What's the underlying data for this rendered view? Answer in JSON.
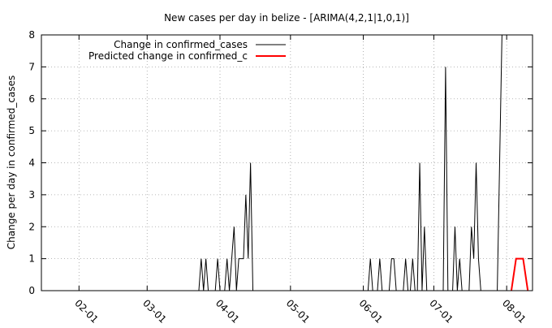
{
  "chart_data": {
    "type": "line",
    "title": "New cases per day in belize -  [ARIMA(4,2,1|1,0,1)]",
    "xlabel": "",
    "ylabel": "Change per day in confirmed_cases",
    "xlim": [
      "2020-01-16",
      "2020-08-12"
    ],
    "ylim": [
      0,
      8
    ],
    "yticks": [
      0,
      1,
      2,
      3,
      4,
      5,
      6,
      7,
      8
    ],
    "xticks": [
      {
        "date": "2020-02-01",
        "label": "02-01"
      },
      {
        "date": "2020-03-01",
        "label": "03-01"
      },
      {
        "date": "2020-04-01",
        "label": "04-01"
      },
      {
        "date": "2020-05-01",
        "label": "05-01"
      },
      {
        "date": "2020-06-01",
        "label": "06-01"
      },
      {
        "date": "2020-07-01",
        "label": "07-01"
      },
      {
        "date": "2020-08-01",
        "label": "08-01"
      }
    ],
    "grid": true,
    "legend_position": "top-left",
    "series": [
      {
        "name": "Change in confirmed_cases",
        "color": "#000000",
        "points": [
          [
            "2020-03-23",
            0
          ],
          [
            "2020-03-24",
            1
          ],
          [
            "2020-03-25",
            0
          ],
          [
            "2020-03-26",
            1
          ],
          [
            "2020-03-27",
            0
          ],
          [
            "2020-03-30",
            0
          ],
          [
            "2020-03-31",
            1
          ],
          [
            "2020-04-01",
            0
          ],
          [
            "2020-04-03",
            0
          ],
          [
            "2020-04-04",
            1
          ],
          [
            "2020-04-05",
            0
          ],
          [
            "2020-04-06",
            1
          ],
          [
            "2020-04-07",
            2
          ],
          [
            "2020-04-08",
            0
          ],
          [
            "2020-04-09",
            1
          ],
          [
            "2020-04-10",
            1
          ],
          [
            "2020-04-11",
            1
          ],
          [
            "2020-04-12",
            3
          ],
          [
            "2020-04-13",
            1
          ],
          [
            "2020-04-14",
            4
          ],
          [
            "2020-04-15",
            0
          ],
          [
            "2020-06-01",
            0
          ],
          [
            "2020-06-03",
            0
          ],
          [
            "2020-06-04",
            1
          ],
          [
            "2020-06-05",
            0
          ],
          [
            "2020-06-07",
            0
          ],
          [
            "2020-06-08",
            1
          ],
          [
            "2020-06-09",
            0
          ],
          [
            "2020-06-12",
            0
          ],
          [
            "2020-06-13",
            1
          ],
          [
            "2020-06-14",
            1
          ],
          [
            "2020-06-15",
            0
          ],
          [
            "2020-06-18",
            0
          ],
          [
            "2020-06-19",
            1
          ],
          [
            "2020-06-20",
            0
          ],
          [
            "2020-06-21",
            0
          ],
          [
            "2020-06-22",
            1
          ],
          [
            "2020-06-23",
            0
          ],
          [
            "2020-06-24",
            0
          ],
          [
            "2020-06-25",
            4
          ],
          [
            "2020-06-26",
            0
          ],
          [
            "2020-06-27",
            2
          ],
          [
            "2020-06-28",
            0
          ],
          [
            "2020-07-01",
            0
          ],
          [
            "2020-07-05",
            0
          ],
          [
            "2020-07-06",
            7
          ],
          [
            "2020-07-07",
            0
          ],
          [
            "2020-07-09",
            0
          ],
          [
            "2020-07-10",
            2
          ],
          [
            "2020-07-11",
            0
          ],
          [
            "2020-07-12",
            1
          ],
          [
            "2020-07-13",
            0
          ],
          [
            "2020-07-16",
            0
          ],
          [
            "2020-07-17",
            2
          ],
          [
            "2020-07-18",
            1
          ],
          [
            "2020-07-19",
            4
          ],
          [
            "2020-07-20",
            1
          ],
          [
            "2020-07-21",
            0
          ],
          [
            "2020-07-28",
            0
          ],
          [
            "2020-07-30",
            8
          ]
        ]
      },
      {
        "name": "Predicted change in confirmed_c",
        "color": "#ff0000",
        "points": [
          [
            "2020-08-03",
            0
          ],
          [
            "2020-08-05",
            1
          ],
          [
            "2020-08-06",
            1
          ],
          [
            "2020-08-07",
            1
          ],
          [
            "2020-08-08",
            1
          ],
          [
            "2020-08-10",
            0
          ]
        ]
      }
    ]
  }
}
